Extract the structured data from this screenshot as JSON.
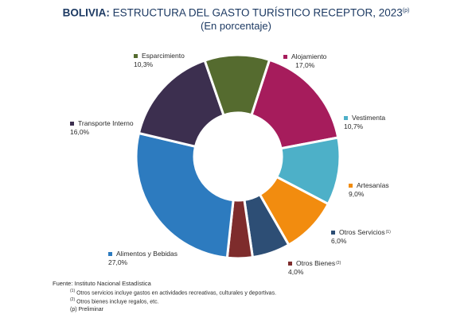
{
  "header": {
    "title_lead": "BOLIVIA:",
    "title_rest": " ESTRUCTURA DEL GASTO TURÍSTICO RECEPTOR, 2023",
    "title_sup": "(p)",
    "subtitle": "(En porcentaje)"
  },
  "chart_data": {
    "type": "pie",
    "title": "BOLIVIA: ESTRUCTURA DEL GASTO TURÍSTICO RECEPTOR, 2023(p)",
    "subtitle": "(En porcentaje)",
    "slices": [
      {
        "label": "Alojamiento",
        "sup": "",
        "value": 17.0,
        "value_text": "17,0%",
        "color": "#a61c5c"
      },
      {
        "label": "Vestimenta",
        "sup": "",
        "value": 10.7,
        "value_text": "10,7%",
        "color": "#4db0c8"
      },
      {
        "label": "Artesanías",
        "sup": "",
        "value": 9.0,
        "value_text": "9,0%",
        "color": "#f28c0f"
      },
      {
        "label": "Otros Servicios",
        "sup": "(1)",
        "value": 6.0,
        "value_text": "6,0%",
        "color": "#2d4e75"
      },
      {
        "label": "Otros Bienes",
        "sup": "(2)",
        "value": 4.0,
        "value_text": "4,0%",
        "color": "#7e2c2c"
      },
      {
        "label": "Alimentos y Bebidas",
        "sup": "",
        "value": 27.0,
        "value_text": "27,0%",
        "color": "#2d7bbf"
      },
      {
        "label": "Transporte Interno",
        "sup": "",
        "value": 16.0,
        "value_text": "16,0%",
        "color": "#3c2f4f"
      },
      {
        "label": "Esparcimiento",
        "sup": "",
        "value": 10.3,
        "value_text": "10,3%",
        "color": "#556b2f"
      }
    ],
    "legend": "labels-around-chart"
  },
  "notes": {
    "source": "Fuente: Instituto Nacional Estadística",
    "note1_sup": "(1)",
    "note1": " Otros servicios incluye gastos en actividades recreativas, culturales y deportivas.",
    "note2_sup": "(2)",
    "note2": " Otros bienes incluye regalos, etc.",
    "note3": "(p) Preliminar"
  }
}
